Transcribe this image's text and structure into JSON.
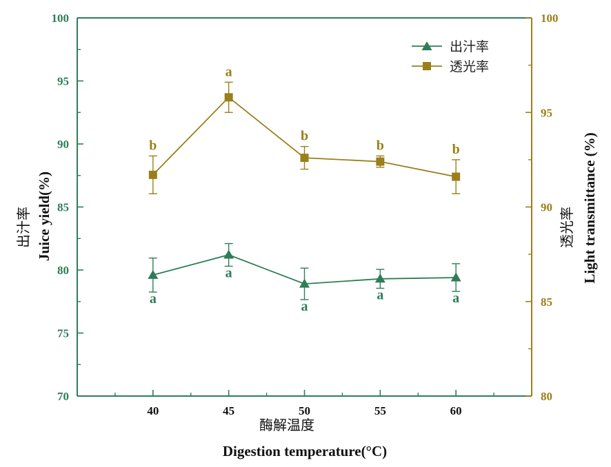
{
  "chart_data": {
    "type": "line",
    "x": [
      40,
      45,
      50,
      55,
      60
    ],
    "xlim": [
      35,
      65
    ],
    "xticks": [
      "40",
      "45",
      "50",
      "55",
      "60"
    ],
    "xlabel_cn": "酶解温度",
    "xlabel_en": "Digestion temperature(°C)",
    "ylabel_left_cn": "出汁率",
    "ylabel_left_en": "Juice yield(%)",
    "ylabel_right_cn": "透光率",
    "ylabel_right_en": "Light transmittance (%)",
    "ylim_left": [
      70,
      100
    ],
    "ylim_right": [
      80,
      100
    ],
    "yticks_left": [
      "70",
      "75",
      "80",
      "85",
      "90",
      "95",
      "100"
    ],
    "yticks_right": [
      "80",
      "85",
      "90",
      "95",
      "100"
    ],
    "legend_position": "top-right",
    "series": [
      {
        "name": "出汁率",
        "axis": "left",
        "marker": "triangle",
        "color": "#2e7d57",
        "values": [
          79.6,
          81.2,
          78.9,
          79.3,
          79.4
        ],
        "errors": [
          1.35,
          0.9,
          1.25,
          0.75,
          1.1
        ],
        "letters": [
          "a",
          "a",
          "a",
          "a",
          "a"
        ]
      },
      {
        "name": "透光率",
        "axis": "right",
        "marker": "square",
        "color": "#9a7f1a",
        "values": [
          91.7,
          95.8,
          92.6,
          92.4,
          91.6
        ],
        "errors": [
          1.0,
          0.8,
          0.6,
          0.3,
          0.9
        ],
        "letters": [
          "b",
          "a",
          "b",
          "b",
          "b"
        ]
      }
    ]
  }
}
